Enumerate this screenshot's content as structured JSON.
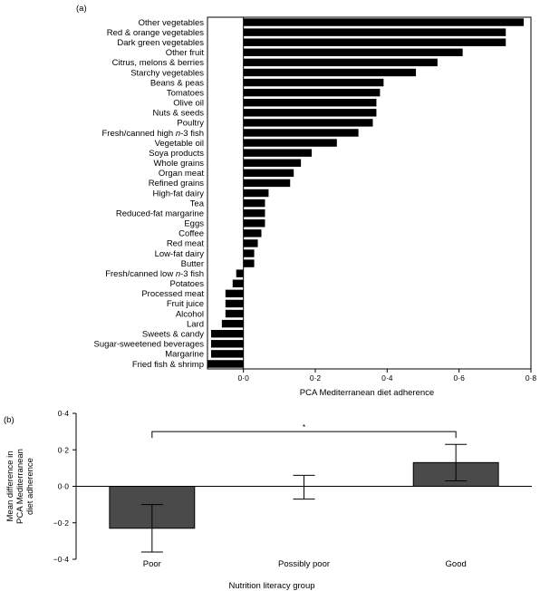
{
  "chart_data": [
    {
      "type": "bar",
      "orientation": "horizontal",
      "panel_label": "(a)",
      "xlabel": "PCA Mediterranean diet adherence",
      "ylabel": "",
      "xlim": [
        -0.1,
        0.8
      ],
      "xticks": [
        0.0,
        0.2,
        0.4,
        0.6,
        0.8
      ],
      "xtick_labels": [
        "0·0",
        "0·2",
        "0·4",
        "0·6",
        "0·8"
      ],
      "bar_color": "#000000",
      "categories": [
        {
          "text": "Other vegetables"
        },
        {
          "text": "Red & orange vegetables"
        },
        {
          "text": "Dark green vegetables"
        },
        {
          "text": "Other fruit"
        },
        {
          "text": "Citrus, melons & berries"
        },
        {
          "text": "Starchy vegetables"
        },
        {
          "text": "Beans & peas"
        },
        {
          "text": "Tomatoes"
        },
        {
          "text": "Olive oil"
        },
        {
          "text": "Nuts & seeds"
        },
        {
          "text": "Poultry"
        },
        {
          "text": "Fresh/canned high ",
          "italic": "n",
          "rest": "-3 fish"
        },
        {
          "text": "Vegetable oil"
        },
        {
          "text": "Soya products"
        },
        {
          "text": "Whole grains"
        },
        {
          "text": "Organ meat"
        },
        {
          "text": "Refined grains"
        },
        {
          "text": "High-fat dairy"
        },
        {
          "text": "Tea"
        },
        {
          "text": "Reduced-fat margarine"
        },
        {
          "text": "Eggs"
        },
        {
          "text": "Coffee"
        },
        {
          "text": "Red meat"
        },
        {
          "text": "Low-fat dairy"
        },
        {
          "text": "Butter"
        },
        {
          "text": "Fresh/canned low ",
          "italic": "n",
          "rest": "-3 fish"
        },
        {
          "text": "Potatoes"
        },
        {
          "text": "Processed meat"
        },
        {
          "text": "Fruit juice"
        },
        {
          "text": "Alcohol"
        },
        {
          "text": "Lard"
        },
        {
          "text": "Sweets & candy"
        },
        {
          "text": "Sugar-sweetened beverages"
        },
        {
          "text": "Margarine"
        },
        {
          "text": "Fried fish & shrimp"
        }
      ],
      "values": [
        0.78,
        0.73,
        0.73,
        0.61,
        0.54,
        0.48,
        0.39,
        0.38,
        0.37,
        0.37,
        0.36,
        0.32,
        0.26,
        0.19,
        0.16,
        0.14,
        0.13,
        0.07,
        0.06,
        0.06,
        0.06,
        0.05,
        0.04,
        0.03,
        0.03,
        -0.02,
        -0.03,
        -0.05,
        -0.05,
        -0.05,
        -0.06,
        -0.09,
        -0.09,
        -0.09,
        -0.1
      ]
    },
    {
      "type": "bar",
      "panel_label": "(b)",
      "xlabel": "Nutrition literacy group",
      "ylabel": [
        "Mean difference in",
        "PCA Mediterranean",
        "diet adherence"
      ],
      "ylim": [
        -0.4,
        0.4
      ],
      "yticks": [
        0.4,
        0.2,
        0.0,
        -0.2,
        -0.4
      ],
      "ytick_labels": [
        "0·4",
        "0·2",
        "0·0",
        "−0·2",
        "−0·4"
      ],
      "bar_color": "#4a4a4a",
      "categories": [
        "Poor",
        "Possibly poor",
        "Good"
      ],
      "values": [
        -0.23,
        0.0,
        0.13
      ],
      "error_low": [
        -0.36,
        -0.07,
        0.03
      ],
      "error_high": [
        -0.1,
        0.06,
        0.23
      ],
      "significance": {
        "between": [
          "Poor",
          "Good"
        ],
        "label": "*"
      }
    }
  ]
}
